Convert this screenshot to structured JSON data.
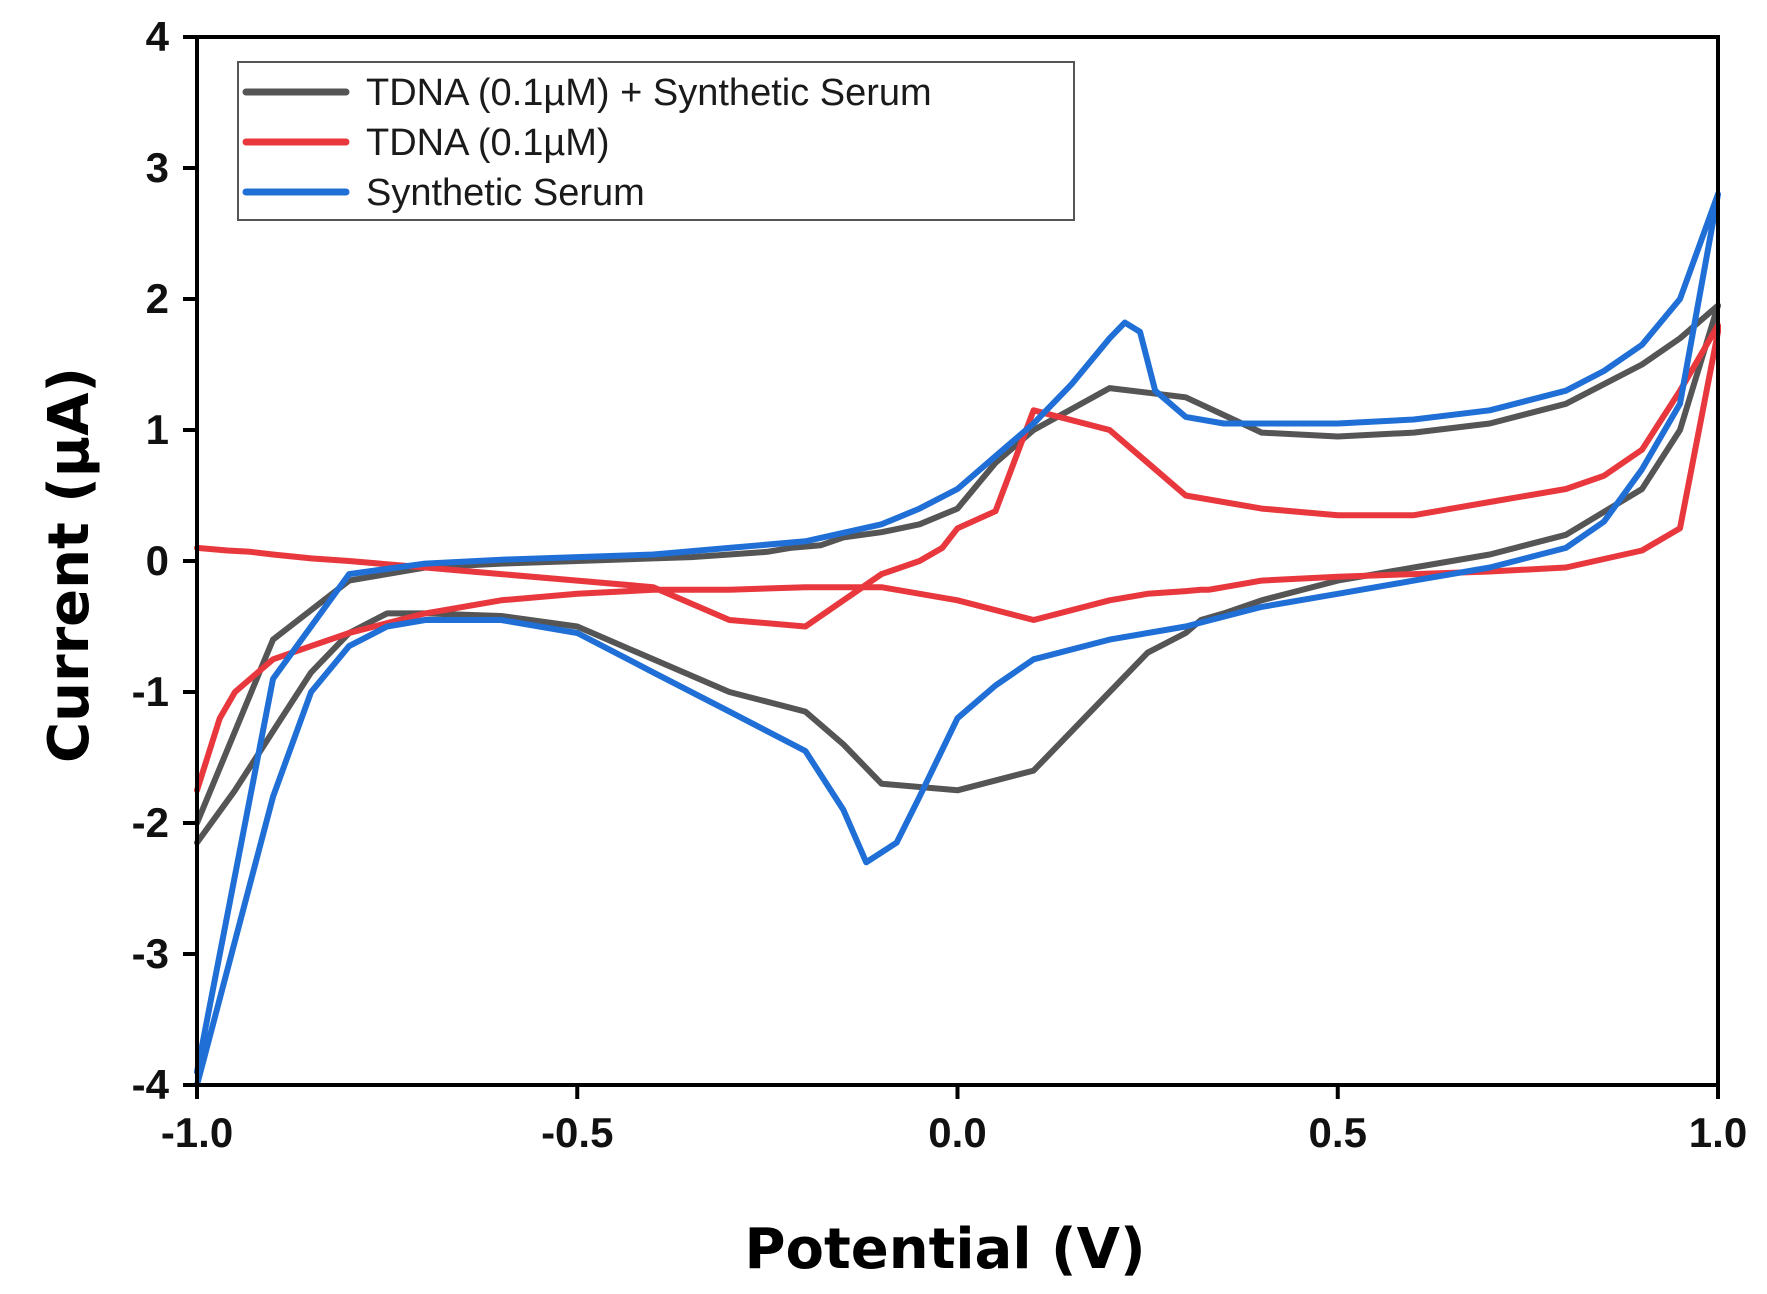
{
  "chart_data": {
    "type": "line",
    "title": "",
    "xlabel": "Potential (V)",
    "ylabel": "Current (μA)",
    "xlim": [
      -1.0,
      1.0
    ],
    "ylim": [
      -4,
      4
    ],
    "xticks": [
      -1.0,
      -0.5,
      0.0,
      0.5,
      1.0
    ],
    "xtick_labels": [
      "-1.0",
      "-0.5",
      "0.0",
      "0.5",
      "1.0"
    ],
    "yticks": [
      -4,
      -3,
      -2,
      -1,
      0,
      1,
      2,
      3,
      4
    ],
    "ytick_labels": [
      "-4",
      "-3",
      "-2",
      "-1",
      "0",
      "1",
      "2",
      "3",
      "4"
    ],
    "grid": false,
    "legend_position": "top-left",
    "series": [
      {
        "name": "TDNA (0.1µM) + Synthetic Serum",
        "color": "#555555",
        "x": [
          -1.0,
          -0.95,
          -0.9,
          -0.85,
          -0.8,
          -0.75,
          -0.7,
          -0.6,
          -0.5,
          -0.4,
          -0.3,
          -0.2,
          -0.15,
          -0.1,
          0.0,
          0.1,
          0.2,
          0.25,
          0.3,
          0.32,
          0.35,
          0.4,
          0.5,
          0.6,
          0.7,
          0.8,
          0.9,
          0.95,
          1.0,
          1.0,
          0.95,
          0.9,
          0.85,
          0.8,
          0.7,
          0.6,
          0.5,
          0.4,
          0.3,
          0.2,
          0.1,
          0.05,
          0.0,
          -0.05,
          -0.1,
          -0.15,
          -0.18,
          -0.22,
          -0.25,
          -0.3,
          -0.35,
          -0.4,
          -0.5,
          -0.6,
          -0.7,
          -0.8,
          -0.9,
          -1.0
        ],
        "y": [
          -2.15,
          -1.75,
          -1.3,
          -0.85,
          -0.55,
          -0.4,
          -0.4,
          -0.42,
          -0.5,
          -0.75,
          -1.0,
          -1.15,
          -1.4,
          -1.7,
          -1.75,
          -1.6,
          -1.0,
          -0.7,
          -0.55,
          -0.45,
          -0.4,
          -0.3,
          -0.15,
          -0.05,
          0.05,
          0.2,
          0.55,
          1.0,
          1.95,
          1.95,
          1.7,
          1.5,
          1.35,
          1.2,
          1.05,
          0.98,
          0.95,
          0.98,
          1.25,
          1.32,
          1.0,
          0.75,
          0.4,
          0.28,
          0.22,
          0.18,
          0.12,
          0.1,
          0.07,
          0.05,
          0.03,
          0.02,
          0.0,
          -0.02,
          -0.05,
          -0.15,
          -0.6,
          -2.0
        ]
      },
      {
        "name": "TDNA (0.1µM)",
        "color": "#e8383d",
        "x": [
          -1.0,
          -0.97,
          -0.95,
          -0.92,
          -0.9,
          -0.85,
          -0.8,
          -0.7,
          -0.6,
          -0.5,
          -0.4,
          -0.3,
          -0.2,
          -0.1,
          0.0,
          0.1,
          0.2,
          0.25,
          0.3,
          0.32,
          0.33,
          0.34,
          0.35,
          0.37,
          0.4,
          0.5,
          0.6,
          0.7,
          0.8,
          0.9,
          0.95,
          1.0,
          1.0,
          0.95,
          0.9,
          0.85,
          0.8,
          0.7,
          0.6,
          0.5,
          0.4,
          0.3,
          0.2,
          0.1,
          0.05,
          0.0,
          -0.02,
          -0.05,
          -0.1,
          -0.2,
          -0.3,
          -0.4,
          -0.5,
          -0.6,
          -0.7,
          -0.8,
          -0.85,
          -0.9,
          -0.93,
          -0.96,
          -1.0
        ],
        "y": [
          -1.75,
          -1.2,
          -1.0,
          -0.85,
          -0.75,
          -0.65,
          -0.55,
          -0.4,
          -0.3,
          -0.25,
          -0.22,
          -0.22,
          -0.2,
          -0.2,
          -0.3,
          -0.45,
          -0.3,
          -0.25,
          -0.23,
          -0.22,
          -0.22,
          -0.21,
          -0.2,
          -0.18,
          -0.15,
          -0.12,
          -0.1,
          -0.08,
          -0.05,
          0.08,
          0.25,
          1.75,
          1.8,
          1.3,
          0.85,
          0.65,
          0.55,
          0.45,
          0.35,
          0.35,
          0.4,
          0.5,
          1.0,
          1.15,
          0.38,
          0.25,
          0.1,
          0.0,
          -0.1,
          -0.5,
          -0.45,
          -0.2,
          -0.15,
          -0.1,
          -0.05,
          0.0,
          0.02,
          0.05,
          0.07,
          0.08,
          0.1
        ]
      },
      {
        "name": "Synthetic Serum",
        "color": "#1f6fd6",
        "x": [
          -1.0,
          -0.95,
          -0.9,
          -0.85,
          -0.8,
          -0.75,
          -0.7,
          -0.6,
          -0.5,
          -0.4,
          -0.3,
          -0.2,
          -0.15,
          -0.12,
          -0.08,
          -0.05,
          0.0,
          0.05,
          0.1,
          0.2,
          0.3,
          0.4,
          0.5,
          0.6,
          0.7,
          0.8,
          0.85,
          0.9,
          0.95,
          1.0,
          1.0,
          0.95,
          0.9,
          0.85,
          0.8,
          0.7,
          0.6,
          0.5,
          0.4,
          0.35,
          0.3,
          0.26,
          0.24,
          0.22,
          0.2,
          0.15,
          0.1,
          0.05,
          0.0,
          -0.05,
          -0.1,
          -0.2,
          -0.3,
          -0.4,
          -0.5,
          -0.6,
          -0.7,
          -0.8,
          -0.9,
          -1.0
        ],
        "y": [
          -4.0,
          -2.9,
          -1.8,
          -1.0,
          -0.65,
          -0.5,
          -0.45,
          -0.45,
          -0.55,
          -0.85,
          -1.15,
          -1.45,
          -1.9,
          -2.3,
          -2.15,
          -1.8,
          -1.2,
          -0.95,
          -0.75,
          -0.6,
          -0.5,
          -0.35,
          -0.25,
          -0.15,
          -0.05,
          0.1,
          0.3,
          0.7,
          1.2,
          2.8,
          2.8,
          2.0,
          1.65,
          1.45,
          1.3,
          1.15,
          1.08,
          1.05,
          1.05,
          1.05,
          1.1,
          1.3,
          1.75,
          1.82,
          1.7,
          1.35,
          1.05,
          0.8,
          0.55,
          0.4,
          0.28,
          0.15,
          0.1,
          0.05,
          0.03,
          0.01,
          -0.02,
          -0.1,
          -0.9,
          -3.9
        ]
      }
    ]
  }
}
